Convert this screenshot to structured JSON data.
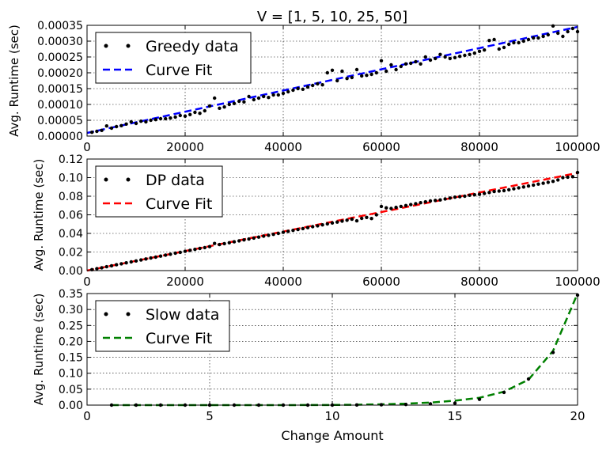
{
  "figure": {
    "title": "V = [1, 5, 10, 25, 50]",
    "xlabel": "Change Amount"
  },
  "chart_data": [
    {
      "type": "scatter",
      "id": "greedy",
      "ylabel": "Avg. Runtime (sec)",
      "xlim": [
        0,
        100000
      ],
      "ylim": [
        0,
        0.00035
      ],
      "x_ticks": [
        "0",
        "20000",
        "40000",
        "60000",
        "80000",
        "100000"
      ],
      "y_ticks": [
        "0.00000",
        "0.00005",
        "0.00010",
        "0.00015",
        "0.00020",
        "0.00025",
        "0.00030",
        "0.00035"
      ],
      "grid": true,
      "legend_position": "top-left",
      "fit_color": "#0000ff",
      "series": [
        {
          "name": "Greedy data",
          "style": "points",
          "x": [
            1000,
            2000,
            3000,
            4000,
            5000,
            6000,
            7000,
            8000,
            9000,
            10000,
            11000,
            12000,
            13000,
            14000,
            15000,
            16000,
            17000,
            18000,
            19000,
            20000,
            21000,
            22000,
            23000,
            24000,
            25000,
            26000,
            27000,
            28000,
            29000,
            30000,
            31000,
            32000,
            33000,
            34000,
            35000,
            36000,
            37000,
            38000,
            39000,
            40000,
            41000,
            42000,
            43000,
            44000,
            45000,
            46000,
            47000,
            48000,
            49000,
            50000,
            51000,
            52000,
            53000,
            54000,
            55000,
            56000,
            57000,
            58000,
            59000,
            60000,
            61000,
            62000,
            63000,
            64000,
            65000,
            66000,
            67000,
            68000,
            69000,
            70000,
            71000,
            72000,
            73000,
            74000,
            75000,
            76000,
            77000,
            78000,
            79000,
            80000,
            81000,
            82000,
            83000,
            84000,
            85000,
            86000,
            87000,
            88000,
            89000,
            90000,
            91000,
            92000,
            93000,
            94000,
            95000,
            96000,
            97000,
            98000,
            99000,
            100000
          ],
          "y": [
            1.2e-05,
            1.5e-05,
            1.8e-05,
            3.2e-05,
            2.5e-05,
            3e-05,
            3.3e-05,
            3.8e-05,
            4.5e-05,
            4e-05,
            4.7e-05,
            4.5e-05,
            5e-05,
            5.2e-05,
            5.5e-05,
            5.5e-05,
            5.7e-05,
            6e-05,
            6.5e-05,
            6.3e-05,
            6.8e-05,
            7.5e-05,
            7.2e-05,
            8e-05,
            9.5e-05,
            0.00012,
            8.8e-05,
            9.2e-05,
            0.0001,
            0.000103,
            0.00011,
            0.000108,
            0.000125,
            0.000115,
            0.00012,
            0.000125,
            0.000122,
            0.00013,
            0.00013,
            0.000135,
            0.00014,
            0.000145,
            0.00015,
            0.000148,
            0.000155,
            0.00016,
            0.000165,
            0.000162,
            0.0002,
            0.000208,
            0.000175,
            0.000205,
            0.000182,
            0.000185,
            0.00021,
            0.00019,
            0.000192,
            0.000195,
            0.0002,
            0.000238,
            0.000205,
            0.000225,
            0.00021,
            0.00022,
            0.000228,
            0.00023,
            0.000235,
            0.000228,
            0.00025,
            0.00024,
            0.000245,
            0.000258,
            0.00025,
            0.000245,
            0.000248,
            0.000252,
            0.000255,
            0.000258,
            0.000262,
            0.000268,
            0.000272,
            0.000302,
            0.000305,
            0.000275,
            0.00028,
            0.00029,
            0.000295,
            0.000295,
            0.0003,
            0.000305,
            0.00031,
            0.00031,
            0.000315,
            0.00032,
            0.000348,
            0.000325,
            0.000315,
            0.00033,
            0.00034,
            0.00033
          ]
        },
        {
          "name": "Curve Fit",
          "style": "dashed",
          "x": [
            0,
            100000
          ],
          "y": [
            1e-05,
            0.000345
          ]
        }
      ]
    },
    {
      "type": "scatter",
      "id": "dp",
      "ylabel": "Avg. Runtime (sec)",
      "xlim": [
        0,
        100000
      ],
      "ylim": [
        0,
        0.12
      ],
      "x_ticks": [
        "0",
        "20000",
        "40000",
        "60000",
        "80000",
        "100000"
      ],
      "y_ticks": [
        "0.00",
        "0.02",
        "0.04",
        "0.06",
        "0.08",
        "0.10",
        "0.12"
      ],
      "grid": true,
      "legend_position": "top-left",
      "fit_color": "#ff0000",
      "series": [
        {
          "name": "DP data",
          "style": "points",
          "x": [
            1000,
            2000,
            3000,
            4000,
            5000,
            6000,
            7000,
            8000,
            9000,
            10000,
            11000,
            12000,
            13000,
            14000,
            15000,
            16000,
            17000,
            18000,
            19000,
            20000,
            21000,
            22000,
            23000,
            24000,
            25000,
            26000,
            27000,
            28000,
            29000,
            30000,
            31000,
            32000,
            33000,
            34000,
            35000,
            36000,
            37000,
            38000,
            39000,
            40000,
            41000,
            42000,
            43000,
            44000,
            45000,
            46000,
            47000,
            48000,
            49000,
            50000,
            51000,
            52000,
            53000,
            54000,
            55000,
            56000,
            57000,
            58000,
            59000,
            60000,
            61000,
            62000,
            63000,
            64000,
            65000,
            66000,
            67000,
            68000,
            69000,
            70000,
            71000,
            72000,
            73000,
            74000,
            75000,
            76000,
            77000,
            78000,
            79000,
            80000,
            81000,
            82000,
            83000,
            84000,
            85000,
            86000,
            87000,
            88000,
            89000,
            90000,
            91000,
            92000,
            93000,
            94000,
            95000,
            96000,
            97000,
            98000,
            99000,
            100000
          ],
          "y": [
            0.001,
            0.002,
            0.003,
            0.0042,
            0.0052,
            0.0063,
            0.0073,
            0.0083,
            0.0094,
            0.0104,
            0.0114,
            0.0125,
            0.0135,
            0.0145,
            0.0156,
            0.0166,
            0.0176,
            0.0187,
            0.0197,
            0.0208,
            0.0218,
            0.0228,
            0.0238,
            0.0248,
            0.0258,
            0.0292,
            0.028,
            0.029,
            0.03,
            0.031,
            0.032,
            0.033,
            0.034,
            0.035,
            0.036,
            0.037,
            0.038,
            0.039,
            0.04,
            0.0412,
            0.0422,
            0.0432,
            0.0442,
            0.0452,
            0.0462,
            0.0472,
            0.0482,
            0.0492,
            0.0502,
            0.0512,
            0.0522,
            0.0532,
            0.0542,
            0.0552,
            0.0535,
            0.0562,
            0.0572,
            0.056,
            0.06,
            0.069,
            0.0675,
            0.0668,
            0.068,
            0.069,
            0.07,
            0.071,
            0.072,
            0.073,
            0.074,
            0.075,
            0.0755,
            0.076,
            0.077,
            0.078,
            0.079,
            0.0795,
            0.08,
            0.081,
            0.0815,
            0.082,
            0.083,
            0.084,
            0.085,
            0.0855,
            0.086,
            0.087,
            0.088,
            0.089,
            0.09,
            0.091,
            0.092,
            0.093,
            0.094,
            0.095,
            0.096,
            0.0975,
            0.1,
            0.1005,
            0.101,
            0.1055
          ]
        },
        {
          "name": "Curve Fit",
          "style": "dashed",
          "x": [
            0,
            100000
          ],
          "y": [
            0.0,
            0.105
          ]
        }
      ]
    },
    {
      "type": "scatter",
      "id": "slow",
      "ylabel": "Avg. Runtime (sec)",
      "xlim": [
        0,
        20
      ],
      "ylim": [
        0,
        0.35
      ],
      "x_ticks": [
        "0",
        "5",
        "10",
        "15",
        "20"
      ],
      "y_ticks": [
        "0.00",
        "0.05",
        "0.10",
        "0.15",
        "0.20",
        "0.25",
        "0.30",
        "0.35"
      ],
      "grid": true,
      "legend_position": "top-left",
      "fit_color": "#008000",
      "series": [
        {
          "name": "Slow data",
          "style": "points",
          "x": [
            1,
            2,
            3,
            4,
            5,
            6,
            7,
            8,
            9,
            10,
            11,
            12,
            13,
            14,
            15,
            16,
            17,
            18,
            19,
            20
          ],
          "y": [
            0.0,
            0.0,
            0.0,
            0.0,
            0.0,
            0.0,
            0.0,
            0.0,
            0.0,
            0.0,
            0.0005,
            0.001,
            0.002,
            0.004,
            0.006,
            0.018,
            0.04,
            0.082,
            0.165,
            0.345
          ]
        },
        {
          "name": "Curve Fit",
          "style": "dashed",
          "x": [
            1,
            2,
            3,
            4,
            5,
            6,
            7,
            8,
            9,
            10,
            11,
            12,
            13,
            14,
            15,
            16,
            17,
            18,
            19,
            20
          ],
          "y": [
            0.0,
            0.0,
            0.0,
            0.0,
            0.0,
            0.0,
            0.0,
            0.0,
            0.0003,
            0.0006,
            0.0012,
            0.0024,
            0.0045,
            0.008,
            0.014,
            0.023,
            0.042,
            0.08,
            0.17,
            0.35
          ]
        }
      ]
    }
  ]
}
